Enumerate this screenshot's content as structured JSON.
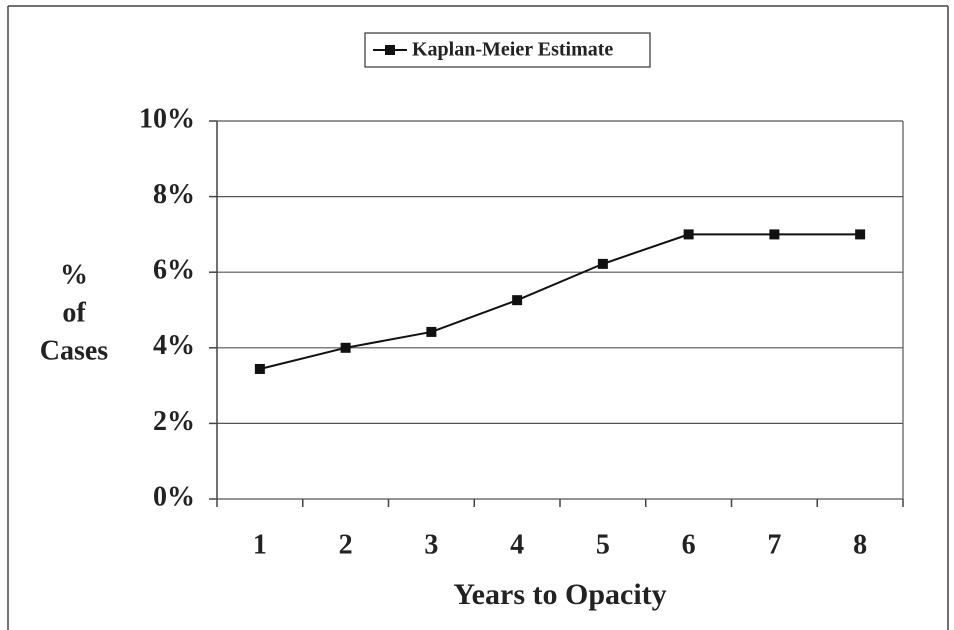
{
  "chart_data": {
    "type": "line",
    "categories": [
      "1",
      "2",
      "3",
      "4",
      "5",
      "6",
      "7",
      "8"
    ],
    "series": [
      {
        "name": "Kaplan-Meier Estimate",
        "color": "#111111",
        "values": [
          3.44,
          4.0,
          4.42,
          5.26,
          6.22,
          7.0,
          7.0,
          7.0
        ]
      }
    ],
    "xlabel": "Years to Opacity",
    "ylabel": [
      "%",
      "of",
      "Cases"
    ],
    "ylim": [
      0,
      10
    ],
    "yticks": [
      {
        "value": 0,
        "label": "0%"
      },
      {
        "value": 2,
        "label": "2%"
      },
      {
        "value": 4,
        "label": "4%"
      },
      {
        "value": 6,
        "label": "6%"
      },
      {
        "value": 8,
        "label": "8%"
      },
      {
        "value": 10,
        "label": "10%"
      }
    ],
    "grid": true,
    "legend": "top"
  }
}
